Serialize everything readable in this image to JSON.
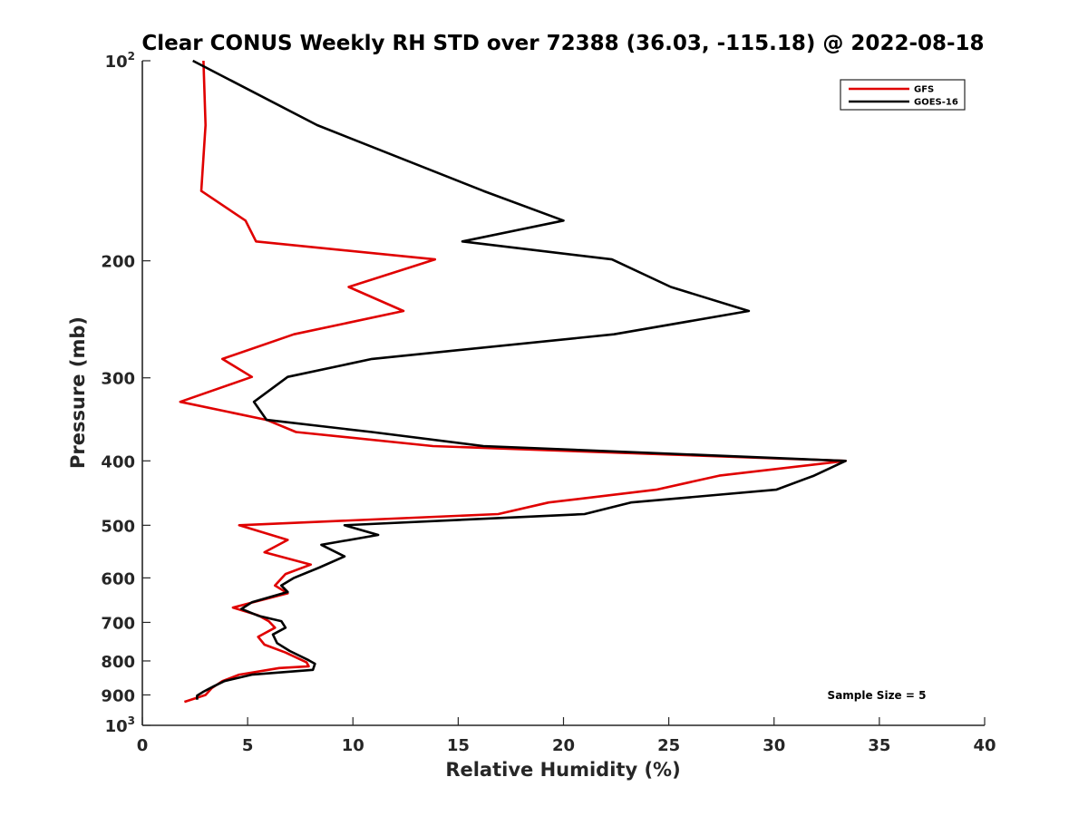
{
  "chart_data": {
    "type": "line",
    "title": "Clear CONUS Weekly RH STD over 72388 (36.03, -115.18) @ 2022-08-18",
    "xlabel": "Relative Humidity (%)",
    "ylabel": "Pressure (mb)",
    "xlim": [
      0,
      40
    ],
    "ylim": [
      100,
      1000
    ],
    "y_scale": "log",
    "y_reversed": true,
    "grid": false,
    "x_ticks": [
      0,
      5,
      10,
      15,
      20,
      25,
      30,
      35,
      40
    ],
    "y_ticks": [
      {
        "value": 100,
        "base": "10",
        "exp": "2"
      },
      {
        "value": 200,
        "text": "200"
      },
      {
        "value": 300,
        "text": "300"
      },
      {
        "value": 400,
        "text": "400"
      },
      {
        "value": 500,
        "text": "500"
      },
      {
        "value": 600,
        "text": "600"
      },
      {
        "value": 700,
        "text": "700"
      },
      {
        "value": 800,
        "text": "800"
      },
      {
        "value": 900,
        "text": "900"
      },
      {
        "value": 1000,
        "base": "10",
        "exp": "3"
      }
    ],
    "legend": {
      "placement": "top-right"
    },
    "annotation": "Sample Size = 5",
    "series": [
      {
        "name": "GFS",
        "color": "#e00000",
        "points": [
          [
            2.9,
            100
          ],
          [
            3.0,
            125
          ],
          [
            2.8,
            157
          ],
          [
            4.9,
            174
          ],
          [
            5.4,
            187
          ],
          [
            13.9,
            199
          ],
          [
            9.8,
            219
          ],
          [
            12.4,
            238
          ],
          [
            7.2,
            258
          ],
          [
            3.8,
            281
          ],
          [
            5.2,
            299
          ],
          [
            1.8,
            326
          ],
          [
            5.9,
            347
          ],
          [
            7.3,
            362
          ],
          [
            13.8,
            380
          ],
          [
            33.4,
            400
          ],
          [
            27.4,
            421
          ],
          [
            24.4,
            442
          ],
          [
            19.3,
            462
          ],
          [
            16.9,
            481
          ],
          [
            4.6,
            500
          ],
          [
            6.9,
            526
          ],
          [
            5.8,
            549
          ],
          [
            8.0,
            573
          ],
          [
            6.8,
            592
          ],
          [
            6.3,
            616
          ],
          [
            6.9,
            633
          ],
          [
            5.1,
            655
          ],
          [
            4.3,
            665
          ],
          [
            5.5,
            683
          ],
          [
            6.0,
            697
          ],
          [
            6.3,
            713
          ],
          [
            5.5,
            736
          ],
          [
            5.8,
            756
          ],
          [
            6.8,
            777
          ],
          [
            7.8,
            804
          ],
          [
            7.9,
            815
          ],
          [
            6.5,
            820
          ],
          [
            4.6,
            839
          ],
          [
            3.8,
            858
          ],
          [
            3.3,
            879
          ],
          [
            3.0,
            900
          ],
          [
            2.0,
            922
          ]
        ]
      },
      {
        "name": "GOES-16",
        "color": "#000000",
        "points": [
          [
            2.4,
            100
          ],
          [
            8.3,
            125
          ],
          [
            16.2,
            157
          ],
          [
            20.0,
            174
          ],
          [
            15.2,
            187
          ],
          [
            22.3,
            199
          ],
          [
            25.1,
            219
          ],
          [
            28.8,
            238
          ],
          [
            22.4,
            258
          ],
          [
            10.9,
            281
          ],
          [
            6.9,
            299
          ],
          [
            5.3,
            326
          ],
          [
            5.9,
            347
          ],
          [
            10.9,
            362
          ],
          [
            16.2,
            380
          ],
          [
            33.4,
            400
          ],
          [
            31.9,
            421
          ],
          [
            30.1,
            442
          ],
          [
            23.2,
            462
          ],
          [
            21.0,
            481
          ],
          [
            9.6,
            500
          ],
          [
            11.2,
            517
          ],
          [
            8.5,
            535
          ],
          [
            9.6,
            557
          ],
          [
            8.4,
            579
          ],
          [
            7.2,
            600
          ],
          [
            6.6,
            616
          ],
          [
            6.9,
            630
          ],
          [
            5.2,
            653
          ],
          [
            4.7,
            668
          ],
          [
            5.5,
            684
          ],
          [
            6.6,
            697
          ],
          [
            6.8,
            713
          ],
          [
            6.2,
            730
          ],
          [
            6.4,
            752
          ],
          [
            7.0,
            773
          ],
          [
            7.9,
            798
          ],
          [
            8.2,
            808
          ],
          [
            8.1,
            825
          ],
          [
            5.2,
            839
          ],
          [
            3.9,
            858
          ],
          [
            3.4,
            873
          ],
          [
            2.9,
            890
          ],
          [
            2.6,
            902
          ],
          [
            2.6,
            915
          ]
        ]
      }
    ]
  }
}
